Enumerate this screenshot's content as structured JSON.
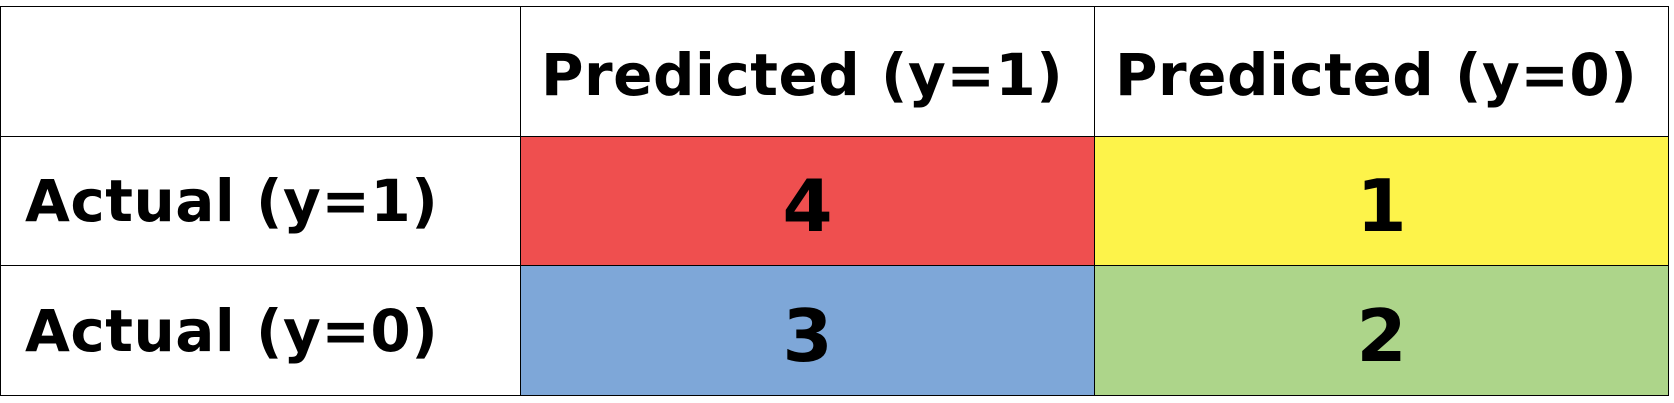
{
  "chart_data": {
    "type": "table",
    "column_headers": [
      "Predicted (y=1)",
      "Predicted (y=0)"
    ],
    "row_headers": [
      "Actual (y=1)",
      "Actual (y=0)"
    ],
    "cells": [
      [
        {
          "value": "4",
          "color": "#EF4F4F"
        },
        {
          "value": "1",
          "color": "#FDF34A"
        }
      ],
      [
        {
          "value": "3",
          "color": "#7EA7D8"
        },
        {
          "value": "2",
          "color": "#ADD58A"
        }
      ]
    ]
  }
}
